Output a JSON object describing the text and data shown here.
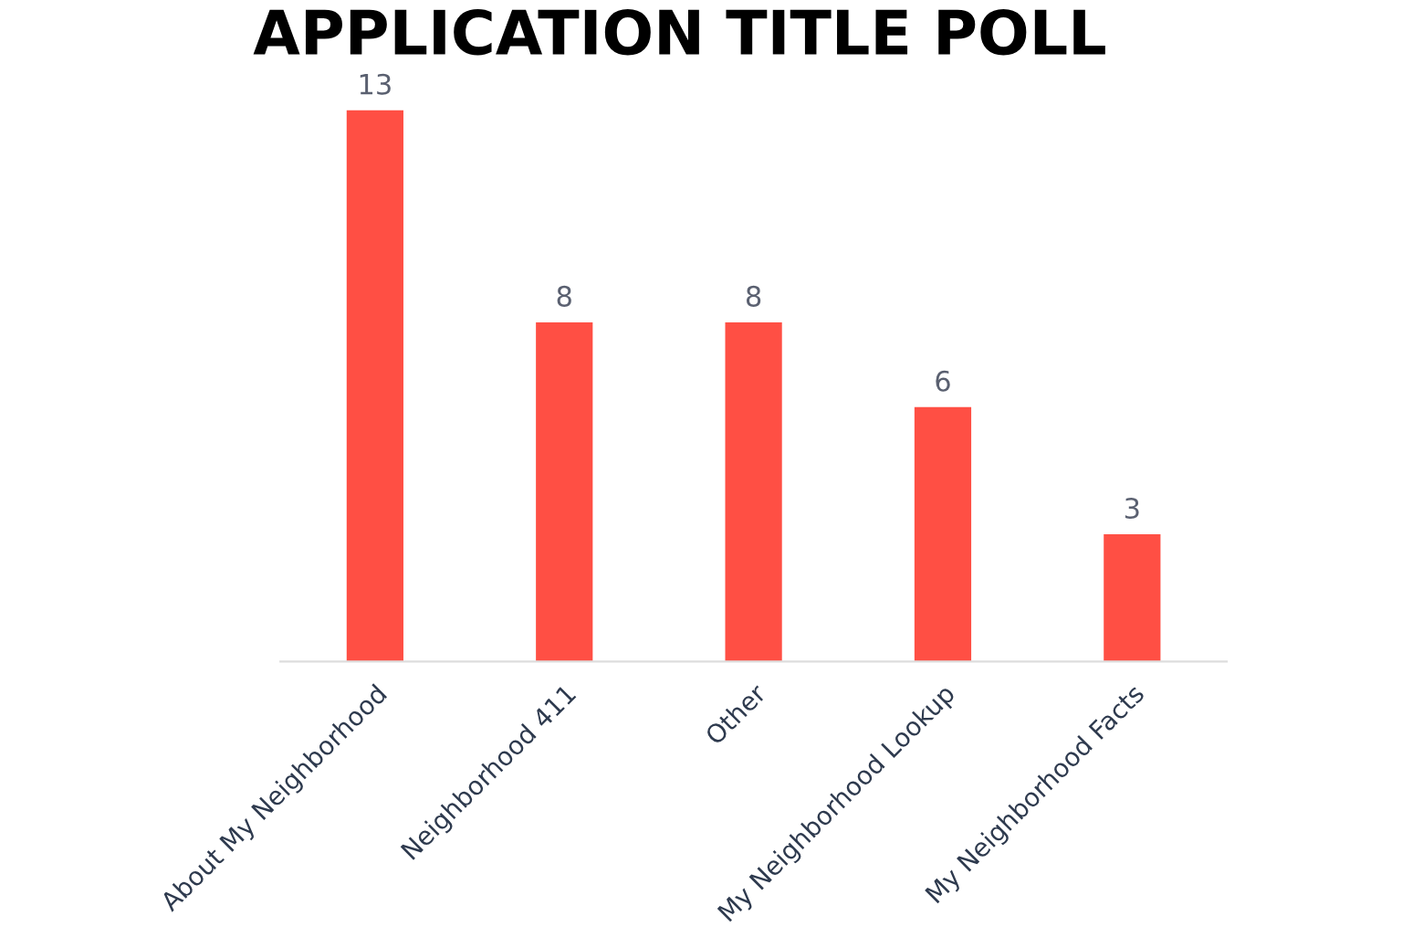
{
  "chart_data": {
    "type": "bar",
    "title": "APPLICATION TITLE POLL",
    "categories": [
      "About My Neighborhood",
      "Neighborhood 411",
      "Other",
      "My Neighborhood Lookup",
      "My Neighborhood Facts"
    ],
    "values": [
      13,
      8,
      8,
      6,
      3
    ],
    "color": "#ff4f44",
    "data_labels": true,
    "grid": false,
    "legend": false,
    "tick_labels": "x"
  }
}
